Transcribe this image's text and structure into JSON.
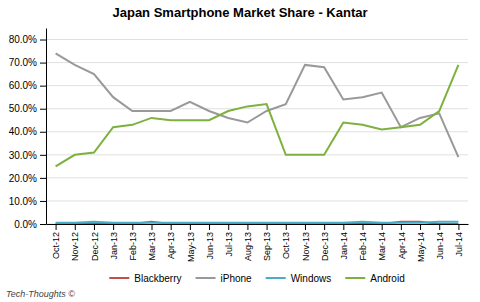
{
  "chart_data": {
    "type": "line",
    "title": "Japan Smartphone Market Share - Kantar",
    "categories": [
      "Oct-12",
      "Nov-12",
      "Dec-12",
      "Jan-13",
      "Feb-13",
      "Mar-13",
      "Apr-13",
      "May-13",
      "Jun-13",
      "Jul-13",
      "Aug-13",
      "Sep-13",
      "Oct-13",
      "Nov-13",
      "Dec-13",
      "Jan-14",
      "Feb-14",
      "Mar-14",
      "Apr-14",
      "May-14",
      "Jun-14",
      "Jul-14"
    ],
    "series": [
      {
        "name": "Blackberry",
        "color": "#c0504d",
        "values": [
          0.0,
          0.0,
          0.0,
          0.0,
          0.0,
          0.01,
          0.0,
          0.0,
          0.0,
          0.0,
          0.0,
          0.0,
          0.0,
          0.0,
          0.0,
          0.0,
          0.0,
          0.0,
          0.01,
          0.01,
          0.0,
          0.0
        ]
      },
      {
        "name": "iPhone",
        "color": "#999999",
        "values": [
          0.74,
          0.69,
          0.65,
          0.55,
          0.49,
          0.49,
          0.49,
          0.53,
          0.49,
          0.46,
          0.44,
          0.49,
          0.52,
          0.69,
          0.68,
          0.54,
          0.55,
          0.57,
          0.42,
          0.46,
          0.48,
          0.29
        ]
      },
      {
        "name": "Windows",
        "color": "#4bacc6",
        "values": [
          0.005,
          0.005,
          0.01,
          0.005,
          0.005,
          0.005,
          0.005,
          0.005,
          0.005,
          0.005,
          0.005,
          0.005,
          0.005,
          0.005,
          0.005,
          0.005,
          0.01,
          0.005,
          0.005,
          0.005,
          0.01,
          0.01
        ]
      },
      {
        "name": "Android",
        "color": "#7db13e",
        "values": [
          0.25,
          0.3,
          0.31,
          0.42,
          0.43,
          0.46,
          0.45,
          0.45,
          0.45,
          0.49,
          0.51,
          0.52,
          0.3,
          0.3,
          0.3,
          0.44,
          0.43,
          0.41,
          0.42,
          0.43,
          0.49,
          0.69
        ]
      }
    ],
    "ylim": [
      0.0,
      0.85
    ],
    "yticks": [
      {
        "value": 0.0,
        "label": "0.0%"
      },
      {
        "value": 0.1,
        "label": "10.0%"
      },
      {
        "value": 0.2,
        "label": "20.0%"
      },
      {
        "value": 0.3,
        "label": "30.0%"
      },
      {
        "value": 0.4,
        "label": "40.0%"
      },
      {
        "value": 0.5,
        "label": "50.0%"
      },
      {
        "value": 0.6,
        "label": "60.0%"
      },
      {
        "value": 0.7,
        "label": "70.0%"
      },
      {
        "value": 0.8,
        "label": "80.0%"
      }
    ],
    "grid": true,
    "legend": "bottom",
    "annotations": [
      "Tech-Thoughts ©"
    ]
  }
}
